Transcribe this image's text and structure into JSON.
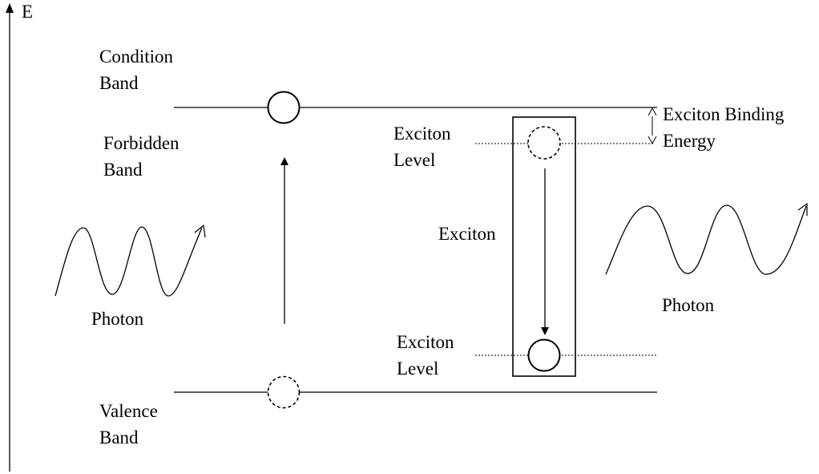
{
  "axis": {
    "label": "E"
  },
  "bands": {
    "conduction": {
      "line1": "Condition",
      "line2": "Band"
    },
    "forbidden": {
      "line1": "Forbidden",
      "line2": "Band"
    },
    "valence": {
      "line1": "Valence",
      "line2": "Band"
    }
  },
  "exciton": {
    "label": "Exciton",
    "level_upper": {
      "line1": "Exciton",
      "line2": "Level"
    },
    "level_lower": {
      "line1": "Exciton",
      "line2": "Level"
    },
    "binding_energy": {
      "line1": "Exciton Binding",
      "line2": "Energy"
    }
  },
  "photon_absorbed": {
    "label": "Photon"
  },
  "photon_emitted": {
    "label": "Photon"
  },
  "colors": {
    "ink": "#000000",
    "background": "#ffffff"
  }
}
